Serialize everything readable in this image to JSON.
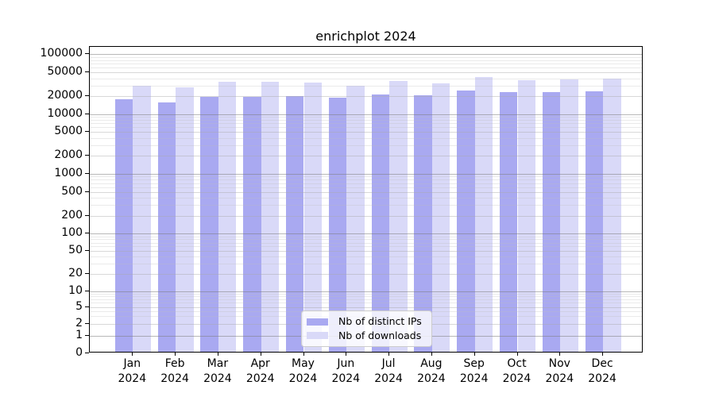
{
  "title": "enrichplot 2024",
  "legend": {
    "items": [
      {
        "label": "Nb of distinct IPs",
        "color": "#a9a9f1"
      },
      {
        "label": "Nb of downloads",
        "color": "#d9d9f8"
      }
    ]
  },
  "y_axis": {
    "tick_values": [
      0,
      1,
      2,
      5,
      10,
      20,
      50,
      100,
      200,
      500,
      1000,
      2000,
      5000,
      10000,
      20000,
      50000,
      100000
    ]
  },
  "x_axis": {
    "months": [
      "Jan",
      "Feb",
      "Mar",
      "Apr",
      "May",
      "Jun",
      "Jul",
      "Aug",
      "Sep",
      "Oct",
      "Nov",
      "Dec"
    ],
    "year": "2024"
  },
  "chart_data": {
    "type": "bar",
    "title": "enrichplot 2024",
    "categories": [
      "Jan 2024",
      "Feb 2024",
      "Mar 2024",
      "Apr 2024",
      "May 2024",
      "Jun 2024",
      "Jul 2024",
      "Aug 2024",
      "Sep 2024",
      "Oct 2024",
      "Nov 2024",
      "Dec 2024"
    ],
    "series": [
      {
        "name": "Nb of distinct IPs",
        "color": "#a9a9f1",
        "values": [
          16500,
          14500,
          18000,
          18000,
          18700,
          17500,
          20000,
          19000,
          23500,
          21500,
          22000,
          22300
        ]
      },
      {
        "name": "Nb of downloads",
        "color": "#d9d9f8",
        "values": [
          28000,
          26000,
          33000,
          32500,
          32000,
          28000,
          33500,
          31000,
          40000,
          34500,
          35500,
          37000
        ]
      }
    ],
    "xlabel": "",
    "ylabel": "",
    "yscale": "symlog",
    "y_ticks": [
      0,
      1,
      2,
      5,
      10,
      20,
      50,
      100,
      200,
      500,
      1000,
      2000,
      5000,
      10000,
      20000,
      50000,
      100000
    ],
    "ylim": [
      0,
      100000
    ],
    "grid": true,
    "legend_position": "bottom-center"
  }
}
